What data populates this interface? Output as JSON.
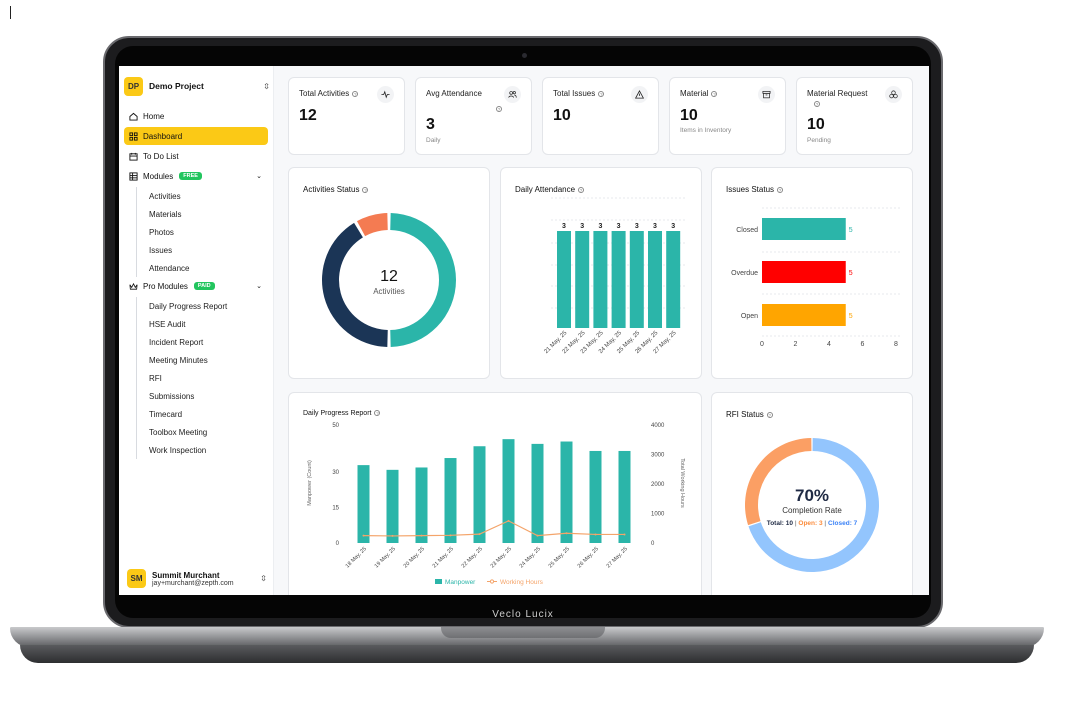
{
  "laptop": {
    "brand": "Veclo Lucix"
  },
  "sidebar": {
    "project": {
      "initials": "DP",
      "name": "Demo Project"
    },
    "nav": [
      {
        "label": "Home",
        "icon": "home-icon"
      },
      {
        "label": "Dashboard",
        "icon": "grid-icon",
        "active": true
      },
      {
        "label": "To Do List",
        "icon": "calendar-icon"
      },
      {
        "label": "Modules",
        "icon": "table-icon",
        "badge": "FREE"
      }
    ],
    "modules": [
      "Activities",
      "Materials",
      "Photos",
      "Issues",
      "Attendance"
    ],
    "pro": {
      "label": "Pro Modules",
      "badge": "PAID"
    },
    "pro_modules": [
      "Daily Progress Report",
      "HSE Audit",
      "Incident Report",
      "Meeting Minutes",
      "RFI",
      "Submissions",
      "Timecard",
      "Toolbox Meeting",
      "Work Inspection"
    ],
    "user": {
      "initials": "SM",
      "name": "Summit Murchant",
      "email": "jay+murchant@zepth.com"
    }
  },
  "stats": [
    {
      "title": "Total Activities",
      "value": "12",
      "sub": "",
      "icon": "activity-icon"
    },
    {
      "title": "Avg Attendance",
      "value": "3",
      "sub": "Daily",
      "icon": "users-icon"
    },
    {
      "title": "Total Issues",
      "value": "10",
      "sub": "",
      "icon": "warning-icon"
    },
    {
      "title": "Material",
      "value": "10",
      "sub": "Items in Inventory",
      "icon": "archive-icon"
    },
    {
      "title": "Material Request",
      "value": "10",
      "sub": "Pending",
      "icon": "boxes-icon"
    }
  ],
  "activities_status": {
    "title": "Activities Status",
    "center_value": "12",
    "center_label": "Activities",
    "chart_data": {
      "type": "pie",
      "values": [
        6,
        5,
        1
      ],
      "colors": [
        "#2bb5a9",
        "#1b3556",
        "#f47b52"
      ]
    }
  },
  "daily_attendance": {
    "title": "Daily Attendance",
    "chart_data": {
      "type": "bar",
      "categories": [
        "21 May, 25",
        "22 May, 25",
        "23 May, 25",
        "24 May, 25",
        "25 May, 25",
        "26 May, 25",
        "27 May, 25"
      ],
      "values": [
        3,
        3,
        3,
        3,
        3,
        3,
        3
      ],
      "color": "#2bb5a9"
    }
  },
  "issues_status": {
    "title": "Issues Status",
    "chart_data": {
      "type": "bar",
      "orientation": "horizontal",
      "categories": [
        "Closed",
        "Overdue",
        "Open"
      ],
      "values": [
        5,
        5,
        5
      ],
      "colors": [
        "#2bb5a9",
        "#ff0000",
        "#ffa500"
      ],
      "xticks": [
        0,
        2,
        4,
        6,
        8
      ],
      "xlim": [
        0,
        8
      ]
    }
  },
  "daily_progress": {
    "title": "Daily Progress Report",
    "chart_data": {
      "type": "bar",
      "categories": [
        "18 May, 25",
        "19 May, 25",
        "20 May, 25",
        "21 May, 25",
        "22 May, 25",
        "23 May, 25",
        "24 May, 25",
        "25 May, 25",
        "26 May, 25",
        "27 May, 25"
      ],
      "series": [
        {
          "name": "Manpower",
          "type": "bar",
          "axis": "left",
          "color": "#2bb5a9",
          "values": [
            33,
            31,
            32,
            36,
            41,
            44,
            42,
            43,
            39,
            39
          ]
        },
        {
          "name": "Working Hours",
          "type": "line",
          "axis": "right",
          "color": "#f4a46a",
          "values": [
            250,
            240,
            250,
            260,
            300,
            750,
            250,
            330,
            290,
            290
          ]
        }
      ],
      "ylabel": "Manpower (Count)",
      "y2label": "Total Working Hours",
      "ylim": [
        0,
        50
      ],
      "yticks": [
        0,
        15,
        30,
        50
      ],
      "y2lim": [
        0,
        4000
      ],
      "y2ticks": [
        0,
        1000,
        2000,
        3000,
        4000
      ]
    }
  },
  "rfi_status": {
    "title": "RFI Status",
    "percent": "70%",
    "label": "Completion Rate",
    "total_text": "Total: 10",
    "open_text": "Open: 3",
    "closed_text": "Closed: 7",
    "chart_data": {
      "type": "pie",
      "values": [
        7,
        3
      ],
      "colors": [
        "#93c5fd",
        "#fb9f64"
      ]
    }
  }
}
